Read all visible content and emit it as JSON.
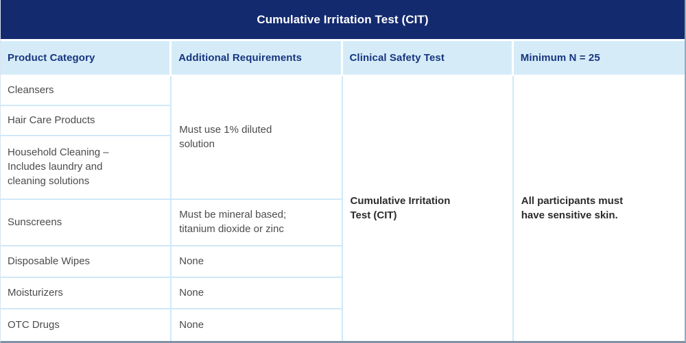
{
  "title_bar": {
    "title": "Cumulative Irritation Test (CIT)"
  },
  "table": {
    "columns": [
      {
        "label": "Product Category"
      },
      {
        "label": "Additional Requirements"
      },
      {
        "label": "Clinical Safety Test"
      },
      {
        "label": "Minimum N = 25"
      }
    ],
    "product_categories": [
      {
        "label": "Cleansers"
      },
      {
        "label": "Hair Care Products"
      },
      {
        "label": "Household Cleaning – Includes laundry and cleaning solutions"
      },
      {
        "label": "Sunscreens"
      },
      {
        "label": "Disposable Wipes"
      },
      {
        "label": "Moisturizers"
      },
      {
        "label": "OTC Drugs"
      }
    ],
    "additional_requirements": [
      {
        "text": "Must use 1% diluted solution",
        "row_span": 3
      },
      {
        "text": "Must be mineral based; titanium dioxide or zinc",
        "row_span": 1
      },
      {
        "text": "None",
        "row_span": 1
      },
      {
        "text": "None",
        "row_span": 1
      },
      {
        "text": "None",
        "row_span": 1
      }
    ],
    "clinical_safety_test": {
      "text": "Cumulative Irritation Test (CIT)",
      "row_span": 7
    },
    "minimum_n_note": {
      "text": "All participants must have sensitive skin.",
      "row_span": 7
    }
  },
  "colors": {
    "banner_bg": "#142a6e",
    "banner_text": "#ffffff",
    "header_bg": "#d5ecf8",
    "header_text": "#17357f",
    "body_text": "#4b4b4b",
    "bold_text": "#2b2b2b",
    "divider": "#cfe9f8",
    "outer_border": "#7e93a9"
  }
}
